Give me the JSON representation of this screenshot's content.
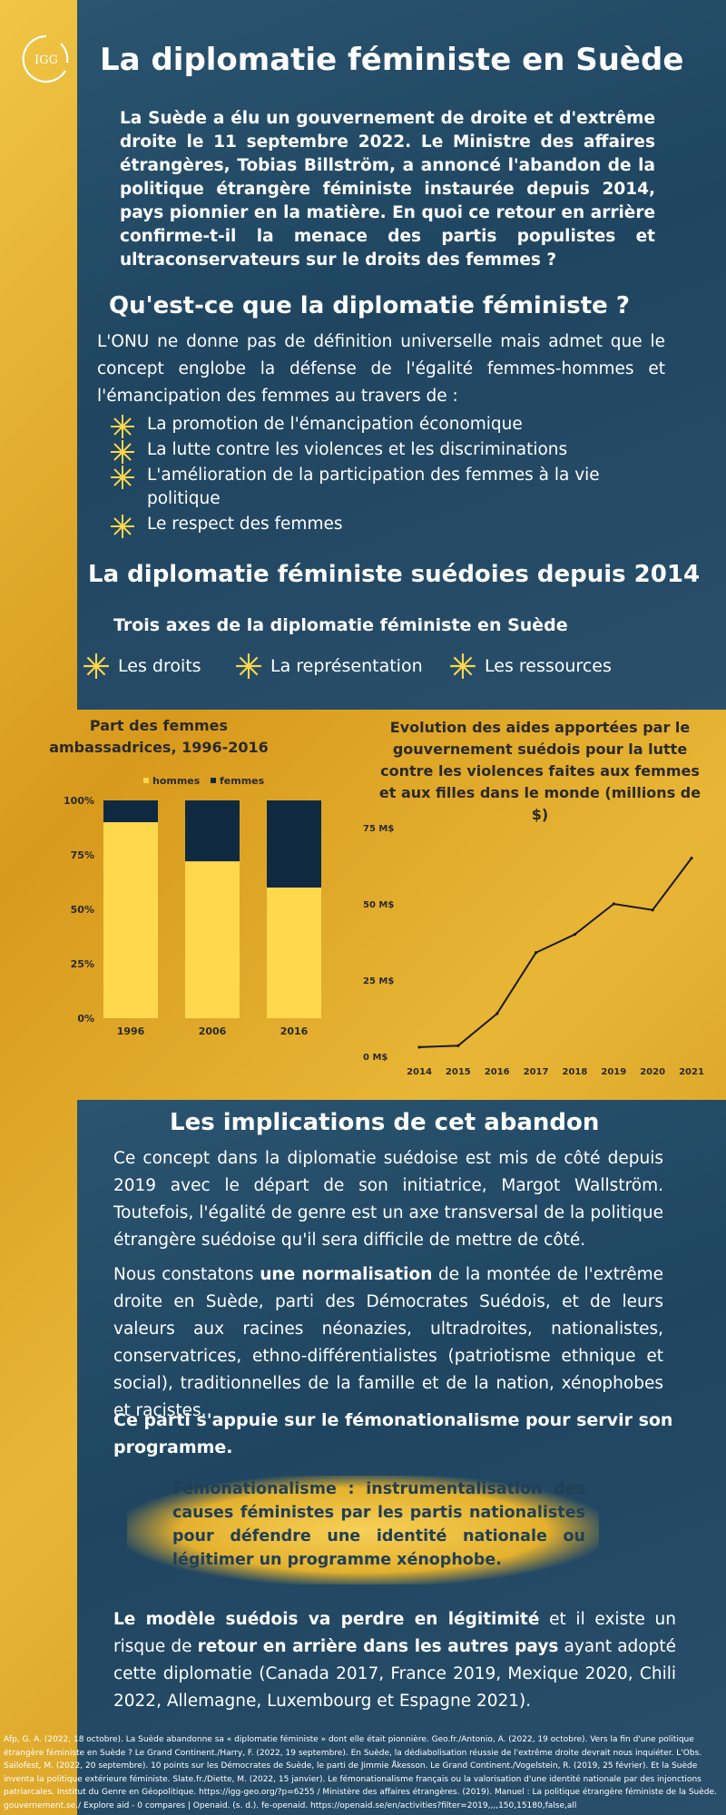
{
  "logo": {
    "text": "IGG"
  },
  "title": "La diplomatie féministe en Suède",
  "intro": "La Suède a élu un gouvernement de droite et d'extrême droite le 11 septembre 2022. Le Ministre des affaires étrangères, Tobias Billström, a annoncé l'abandon de la politique étrangère féministe instaurée depuis 2014, pays pionnier en la matière. En quoi ce retour en arrière confirme-t-il la menace des partis populistes et ultraconservateurs sur le droits des femmes ?",
  "section1": {
    "heading": "Qu'est-ce que la diplomatie féministe ?",
    "text": "L'ONU ne donne pas de définition universelle mais admet que le concept englobe la défense de l'égalité femmes-hommes et l'émancipation des femmes au travers de :",
    "bullets": [
      "La promotion de l'émancipation économique",
      "La lutte contre les violences et les discriminations",
      "L'amélioration de la participation des femmes à la vie politique",
      "Le respect des femmes"
    ]
  },
  "section2": {
    "heading": "La diplomatie féministe suédoies depuis 2014",
    "subheading": "Trois axes de la diplomatie féministe en Suède",
    "axes": [
      "Les droits",
      "La représentation",
      "Les ressources"
    ]
  },
  "chart_data": [
    {
      "type": "bar",
      "title": "Part des femmes ambassadrices, 1996-2016",
      "categories": [
        "1996",
        "2006",
        "2016"
      ],
      "series": [
        {
          "name": "hommes",
          "values": [
            90,
            72,
            60
          ]
        },
        {
          "name": "femmes",
          "values": [
            10,
            28,
            40
          ]
        }
      ],
      "stacked": true,
      "yticks": [
        "0%",
        "25%",
        "50%",
        "75%",
        "100%"
      ],
      "ylim": [
        0,
        100
      ],
      "colors": {
        "hommes": "#ffd84d",
        "femmes": "#0f2a40"
      },
      "legend": "top"
    },
    {
      "type": "line",
      "title": "Evolution des aides apportées par le gouvernement suédois pour la lutte contre les violences faites aux femmes et aux filles dans le monde (millions de $)",
      "x": [
        "2014",
        "2015",
        "2016",
        "2017",
        "2018",
        "2019",
        "2020",
        "2021"
      ],
      "values": [
        3,
        3.5,
        14,
        34,
        40,
        50,
        48,
        65
      ],
      "yticks": [
        "0 M$",
        "25 M$",
        "50 M$",
        "75 M$"
      ],
      "ylim": [
        0,
        75
      ],
      "color": "#1a1a1a"
    }
  ],
  "section3": {
    "heading": "Les implications de cet abandon",
    "p1": "Ce concept dans la diplomatie suédoise est mis de côté depuis 2019 avec le départ de son initiatrice, Margot Wallström. Toutefois, l'égalité de genre est un axe transversal de la politique étrangère suédoise qu'il sera difficile de mettre de côté.",
    "p2_a": "Nous constatons ",
    "p2_b": "une normalisation",
    "p2_c": " de la montée de l'extrême droite en Suède, parti des Démocrates Suédois, et de leurs valeurs aux racines néonazies, ultradroites, nationalistes, conservatrices, ethno-différentialistes (patriotisme ethnique et social), traditionnelles de la famille et de la nation, xénophobes et racistes.",
    "p3": "Ce parti s'appuie sur le fémonationalisme pour servir son programme.",
    "note": "Fémonationalisme : instrumentalisation des causes féministes par les partis nationalistes pour défendre une identité nationale ou légitimer un programme xénophobe.",
    "p4_a": "Le modèle suédois va perdre en légitimité",
    "p4_b": "  et il existe un risque de ",
    "p4_c": "retour en arrière dans les autres pays",
    "p4_d": " ayant adopté cette diplomatie (Canada 2017, France 2019, Mexique 2020, Chili 2022, Allemagne, Luxembourg et Espagne 2021)."
  },
  "references": "Afp, G. A. (2022, 18 octobre). La Suède abandonne sa « diplomatie féministe » dont elle était pionnière. Geo.fr./Antonio, A. (2022, 19 octobre). Vers la fin d'une politique étrangère féministe en Suède ? Le Grand Continent./Harry, F. (2022, 19 septembre). En Suède, la dédiabolisation réussie de l'extrême droite devrait nous inquiéter. L'Obs. Sailofest, M. (2022, 20 septembre). 10 points sur les Démocrates de Suède, le parti de Jimmie Åkesson. Le Grand Continent./Vogelstein, R. (2019, 25 février). Et la Suède inventa la politique extérieure féministe. Slate.fr./Diette, M. (2022, 15 janvier). Le fémonationalisme français ou la valorisation d'une identité nationale par des injonctions patriarcales. Institut du Genre en Géopolitique. https://igg-geo.org/?p=6255 / Ministère des affaires étrangères. (2019). Manuel : La politique étrangère féministe de la Suède. gouvernement.se./ Explore aid - 0 compares | Openaid. (s. d.). fe-openaid. https://openaid.se/en/activities?filter=2019,,,,150,15180,false,all"
}
